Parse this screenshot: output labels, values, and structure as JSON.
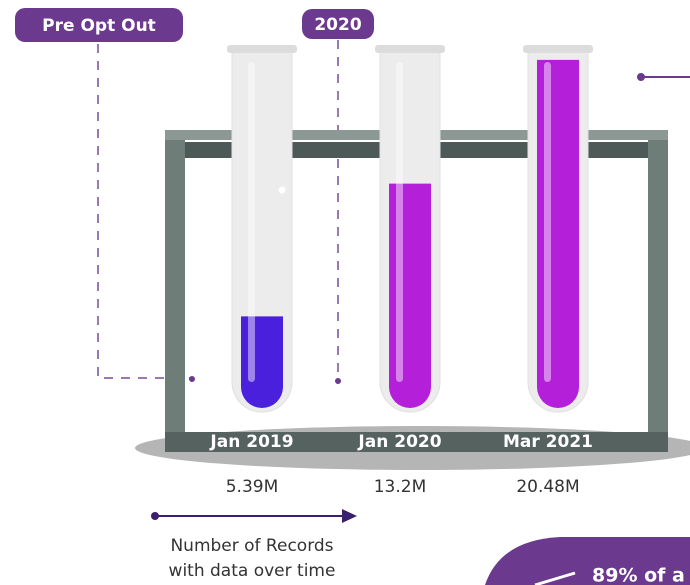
{
  "chart_data": {
    "type": "test-tube",
    "annotations": [
      "Pre Opt Out",
      "2020"
    ],
    "categories": [
      "Jan 2019",
      "Jan  2020",
      "Mar 2021"
    ],
    "values": [
      5.39,
      13.2,
      20.48
    ],
    "value_labels": [
      "5.39M",
      "13.2M",
      "20.48M"
    ],
    "colors": [
      "#4b20dc",
      "#b41fd9",
      "#b41fd9"
    ],
    "caption": [
      "Number of Records",
      "with data over time"
    ],
    "callout": "89% of a"
  }
}
